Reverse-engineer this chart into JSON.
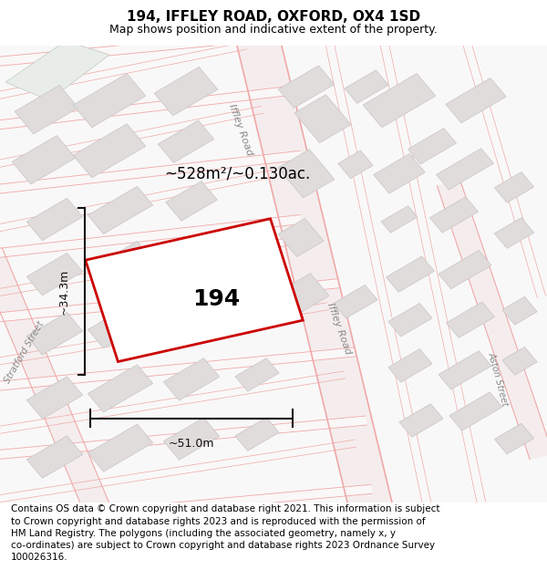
{
  "title": "194, IFFLEY ROAD, OXFORD, OX4 1SD",
  "subtitle": "Map shows position and indicative extent of the property.",
  "title_fontsize": 11,
  "subtitle_fontsize": 9,
  "footer": "Contains OS data © Crown copyright and database right 2021. This information is subject to Crown copyright and database rights 2023 and is reproduced with the permission of HM Land Registry. The polygons (including the associated geometry, namely x, y co-ordinates) are subject to Crown copyright and database rights 2023 Ordnance Survey 100026316.",
  "footer_fontsize": 7.5,
  "map_bg": "#f9f8f8",
  "road_line_color": "#f0a8a8",
  "road_fill_color": "#f5eded",
  "building_face": "#e0dcdc",
  "building_edge": "#c8c4c4",
  "greenish": "#e8ede8",
  "property_edge": "#cc0000",
  "property_fill": "#ffffff",
  "dim_color": "#111111",
  "street_label_color": "#888888",
  "area_text": "~528m²/~0.130ac.",
  "width_text": "~51.0m",
  "height_text": "~34.3m",
  "label_194": "194"
}
